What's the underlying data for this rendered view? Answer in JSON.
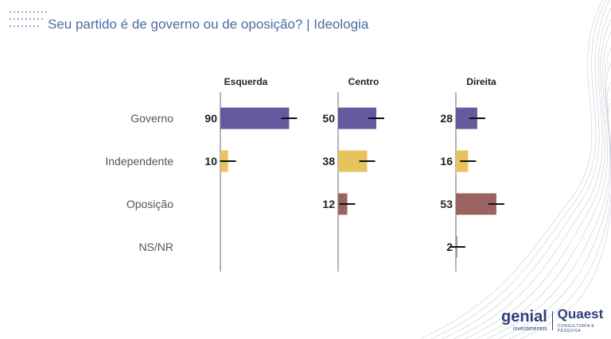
{
  "header": {
    "title": "Seu partido é de governo ou de oposição? | Ideologia"
  },
  "logos": {
    "genial": "genial",
    "genial_sub": "investimentos",
    "quaest": "Quaest",
    "quaest_sub": "CONSULTORIA E PESQUISA"
  },
  "colors": {
    "governo": "#625a9c",
    "independente": "#e6c35c",
    "oposicao": "#9b6262",
    "nsnr": "#9a9a9a",
    "error_bar": "#111111",
    "axis": "#b5b5b5"
  },
  "chart_data": {
    "type": "bar",
    "orientation": "horizontal",
    "title": "Seu partido é de governo ou de oposição? | Ideologia",
    "categories": [
      "Governo",
      "Independente",
      "Oposição",
      "NS/NR"
    ],
    "panels": [
      {
        "name": "Esquerda",
        "values": [
          90,
          10,
          null,
          null
        ]
      },
      {
        "name": "Centro",
        "values": [
          50,
          38,
          12,
          null
        ]
      },
      {
        "name": "Direita",
        "values": [
          28,
          16,
          53,
          2
        ]
      }
    ],
    "value_labels": true,
    "error_bars": true,
    "grid": false,
    "legend": "none"
  }
}
